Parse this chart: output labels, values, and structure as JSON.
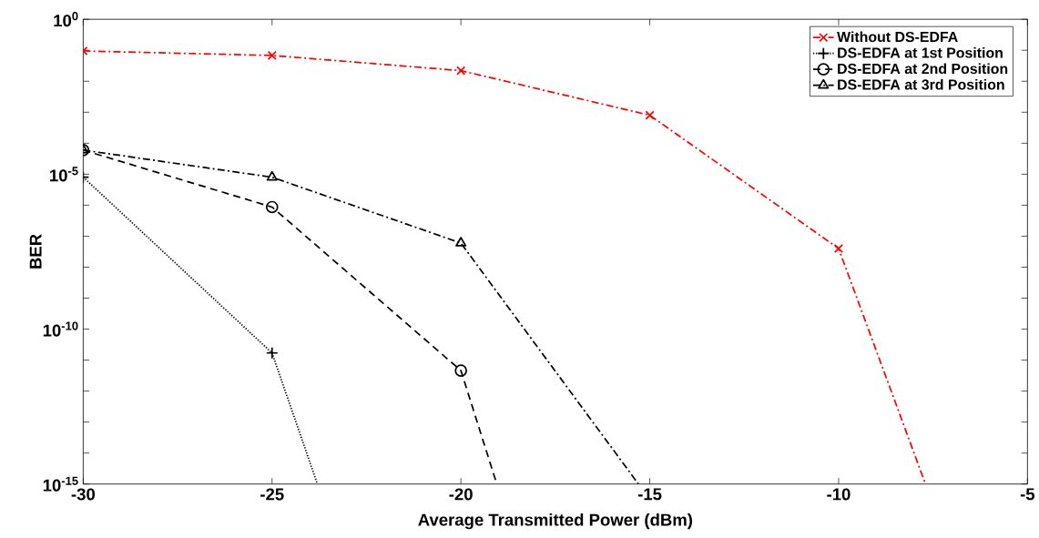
{
  "chart_data": {
    "type": "line",
    "xlabel": "Average Transmitted Power (dBm)",
    "ylabel": "BER",
    "log": "y",
    "xlim": [
      -30,
      -5
    ],
    "xticks": [
      -30,
      -25,
      -20,
      -15,
      -10,
      -5
    ],
    "ylim": [
      1e-15,
      1
    ],
    "yticks": [
      {
        "value": 1e-15,
        "label": "10$^{-15}$"
      },
      {
        "value": 1e-14,
        "label": null
      },
      {
        "value": 1e-13,
        "label": null
      },
      {
        "value": 1e-12,
        "label": null
      },
      {
        "value": 1e-11,
        "label": null
      },
      {
        "value": 1e-10,
        "label": "10$^{-10}$"
      },
      {
        "value": 1e-09,
        "label": null
      },
      {
        "value": 1e-08,
        "label": null
      },
      {
        "value": 1e-07,
        "label": null
      },
      {
        "value": 1e-06,
        "label": null
      },
      {
        "value": 1e-05,
        "label": "10$^{-5}$"
      },
      {
        "value": 0.0001,
        "label": null
      },
      {
        "value": 0.001,
        "label": null
      },
      {
        "value": 0.01,
        "label": null
      },
      {
        "value": 0.1,
        "label": null
      },
      {
        "value": 1,
        "label": "10$^{0}$"
      }
    ],
    "legend": "top right",
    "grid": false,
    "series": [
      {
        "name": "Without DS-EDFA",
        "color": "#ff0000",
        "marker": "cross",
        "line_style": "dashdot",
        "x": [
          -30,
          -25,
          -20,
          -15,
          -10,
          -7.7
        ],
        "values": [
          0.095,
          0.068,
          0.022,
          0.0008,
          4e-08,
          1e-15
        ]
      },
      {
        "name": "DS-EDFA at 1st Position",
        "color": "#000000",
        "marker": "plus",
        "line_style": "dotted",
        "x": [
          -30,
          -25,
          -23.8
        ],
        "values": [
          8e-06,
          1.7e-11,
          1e-15
        ]
      },
      {
        "name": "DS-EDFA at 2nd Position",
        "color": "#000000",
        "marker": "circle",
        "line_style": "dashed",
        "x": [
          -30,
          -25,
          -20,
          -19.05
        ],
        "values": [
          6e-05,
          8.7e-07,
          4.6e-12,
          1e-15
        ]
      },
      {
        "name": "DS-EDFA at 3rd Position",
        "color": "#000000",
        "marker": "triangle",
        "line_style": "dashdot",
        "x": [
          -30,
          -25,
          -20,
          -15.3
        ],
        "values": [
          6e-05,
          8e-06,
          6e-08,
          1e-15
        ]
      }
    ]
  }
}
